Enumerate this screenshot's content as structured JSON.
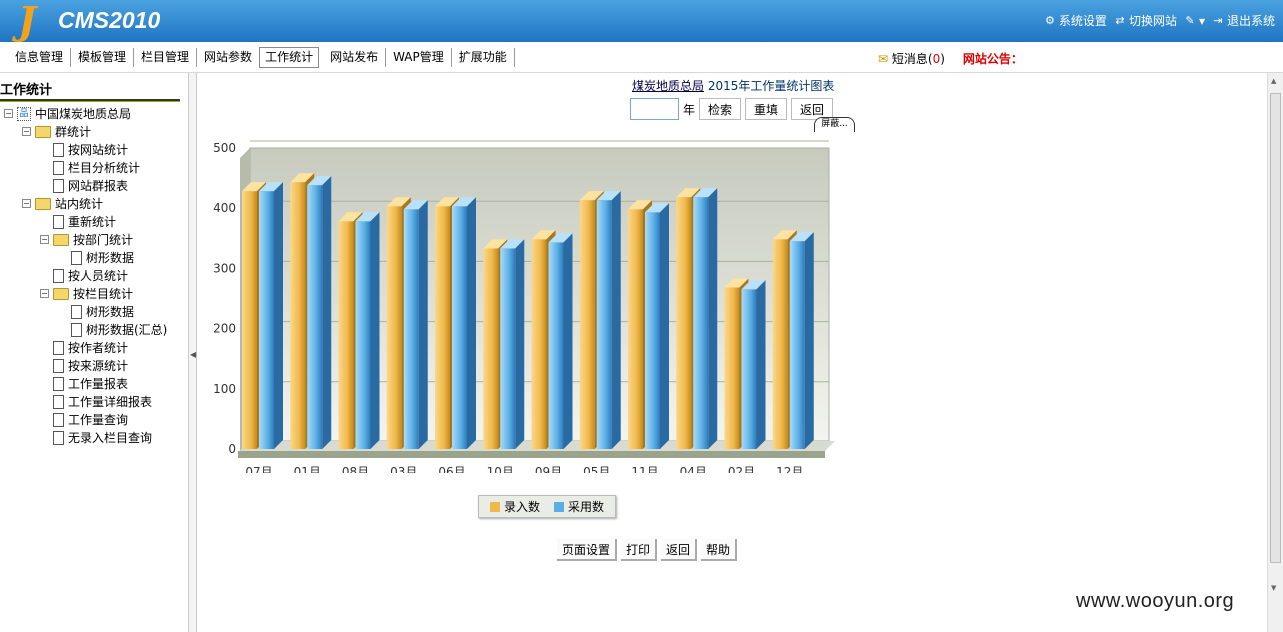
{
  "header": {
    "logo_text": "CMS2010",
    "links": [
      {
        "label": "系统设置",
        "icon": "gear-icon"
      },
      {
        "label": "切换网站",
        "icon": "switch-icon"
      },
      {
        "label": "",
        "icon": "tools-icon"
      },
      {
        "label": "退出系统",
        "icon": "exit-icon"
      }
    ]
  },
  "menu": {
    "items": [
      "信息管理",
      "模板管理",
      "栏目管理",
      "网站参数",
      "工作统计",
      "网站发布",
      "WAP管理",
      "扩展功能"
    ],
    "active": "工作统计",
    "messages_label": "短消息(",
    "messages_count": "0",
    "messages_close": ")",
    "notice_label": "网站公告："
  },
  "sidebar": {
    "title": "工作统计",
    "tree": [
      {
        "label": "中国煤炭地质总局",
        "level": 0,
        "kind": "root",
        "toggle": "⊟"
      },
      {
        "label": "群统计",
        "level": 1,
        "kind": "folder",
        "toggle": "⊟"
      },
      {
        "label": "按网站统计",
        "level": 2,
        "kind": "doc"
      },
      {
        "label": "栏目分析统计",
        "level": 2,
        "kind": "doc"
      },
      {
        "label": "网站群报表",
        "level": 2,
        "kind": "doc"
      },
      {
        "label": "站内统计",
        "level": 1,
        "kind": "folder",
        "toggle": "⊟"
      },
      {
        "label": "重新统计",
        "level": 2,
        "kind": "doc"
      },
      {
        "label": "按部门统计",
        "level": 2,
        "kind": "folder",
        "toggle": "⊟"
      },
      {
        "label": "树形数据",
        "level": 3,
        "kind": "doc"
      },
      {
        "label": "按人员统计",
        "level": 2,
        "kind": "doc"
      },
      {
        "label": "按栏目统计",
        "level": 2,
        "kind": "folder",
        "toggle": "⊟"
      },
      {
        "label": "树形数据",
        "level": 3,
        "kind": "doc"
      },
      {
        "label": "树形数据(汇总)",
        "level": 3,
        "kind": "doc"
      },
      {
        "label": "按作者统计",
        "level": 2,
        "kind": "doc"
      },
      {
        "label": "按来源统计",
        "level": 2,
        "kind": "doc"
      },
      {
        "label": "工作量报表",
        "level": 2,
        "kind": "doc"
      },
      {
        "label": "工作量详细报表",
        "level": 2,
        "kind": "doc"
      },
      {
        "label": "工作量查询",
        "level": 2,
        "kind": "doc"
      },
      {
        "label": "无录入栏目查询",
        "level": 2,
        "kind": "doc"
      }
    ]
  },
  "main": {
    "title_org": "煤炭地质总局",
    "title_rest": " 2015年工作量统计图表",
    "year_value": "",
    "year_suffix": "年",
    "search_label": "检索",
    "reset_label": "重填",
    "back_label": "返回",
    "screen_tab": "屏蔽...",
    "bottom_buttons": [
      "页面设置",
      "打印",
      "返回",
      "帮助"
    ]
  },
  "chart_data": {
    "type": "bar",
    "categories": [
      "07月",
      "01月",
      "08月",
      "03月",
      "06月",
      "10月",
      "09月",
      "05月",
      "11月",
      "04月",
      "02月",
      "12月"
    ],
    "series": [
      {
        "name": "录入数",
        "values": [
          425,
          440,
          375,
          400,
          400,
          330,
          345,
          410,
          395,
          415,
          265,
          345
        ],
        "color": "#f0b84a"
      },
      {
        "name": "采用数",
        "values": [
          425,
          435,
          375,
          395,
          400,
          330,
          340,
          410,
          390,
          415,
          262,
          342
        ],
        "color": "#5aaee6"
      }
    ],
    "ylim": [
      0,
      500
    ],
    "yticks": [
      "0",
      "100",
      "200",
      "300",
      "400",
      "500"
    ],
    "grid": true,
    "legend": "bottom-center"
  },
  "watermark": "www.wooyun.org"
}
